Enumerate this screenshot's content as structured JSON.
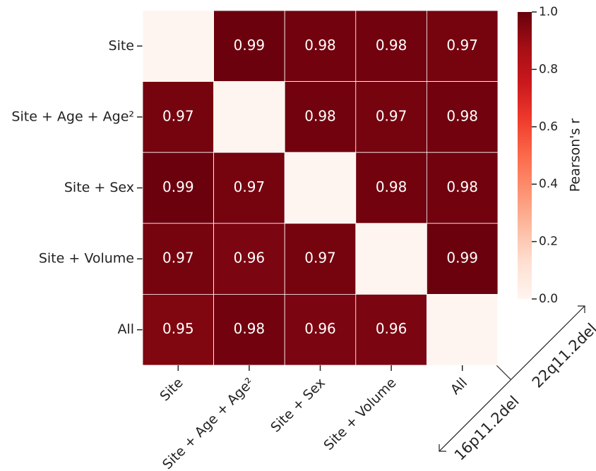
{
  "chart_data": {
    "type": "heatmap",
    "rows": [
      "Site",
      "Site + Age + Age²",
      "Site + Sex",
      "Site + Volume",
      "All"
    ],
    "columns": [
      "Site",
      "Site + Age + Age²",
      "Site + Sex",
      "Site + Volume",
      "All"
    ],
    "values": [
      [
        null,
        0.99,
        0.98,
        0.98,
        0.97
      ],
      [
        0.97,
        null,
        0.98,
        0.97,
        0.98
      ],
      [
        0.99,
        0.97,
        null,
        0.98,
        0.98
      ],
      [
        0.97,
        0.96,
        0.97,
        null,
        0.99
      ],
      [
        0.95,
        0.98,
        0.96,
        0.96,
        null
      ]
    ],
    "colormap": "Reds",
    "zlim": [
      0,
      1
    ],
    "colorbar_ticks": [
      {
        "value": 0,
        "label": "0.0"
      },
      0.2,
      0.4,
      0.6,
      0.8,
      {
        "value": 1,
        "label": "1.0"
      }
    ],
    "colorbar_label": "Pearson's r",
    "lower_triangle_label": "16p11.2del",
    "upper_triangle_label": "22q11.2del"
  }
}
